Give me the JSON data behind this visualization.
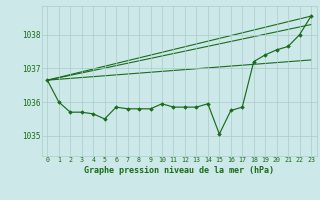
{
  "title": "Graphe pression niveau de la mer (hPa)",
  "background_color": "#cce8e8",
  "grid_color": "#aacccc",
  "line_color": "#1a6b1a",
  "marker_color": "#1a6b1a",
  "xlim": [
    -0.5,
    23.5
  ],
  "ylim": [
    1034.4,
    1038.85
  ],
  "yticks": [
    1035,
    1036,
    1037,
    1038
  ],
  "xticks": [
    0,
    1,
    2,
    3,
    4,
    5,
    6,
    7,
    8,
    9,
    10,
    11,
    12,
    13,
    14,
    15,
    16,
    17,
    18,
    19,
    20,
    21,
    22,
    23
  ],
  "series_data": [
    1036.65,
    1036.0,
    1035.7,
    1035.7,
    1035.65,
    1035.5,
    1035.85,
    1035.8,
    1035.8,
    1035.8,
    1035.95,
    1035.85,
    1035.85,
    1035.85,
    1035.95,
    1035.05,
    1035.75,
    1035.85,
    1037.2,
    1037.4,
    1037.55,
    1037.65,
    1038.0,
    1038.55
  ],
  "line1_x": [
    0,
    23
  ],
  "line1_y": [
    1036.65,
    1038.55
  ],
  "line2_x": [
    0,
    23
  ],
  "line2_y": [
    1036.65,
    1037.25
  ],
  "line3_x": [
    0,
    23
  ],
  "line3_y": [
    1036.65,
    1038.3
  ]
}
